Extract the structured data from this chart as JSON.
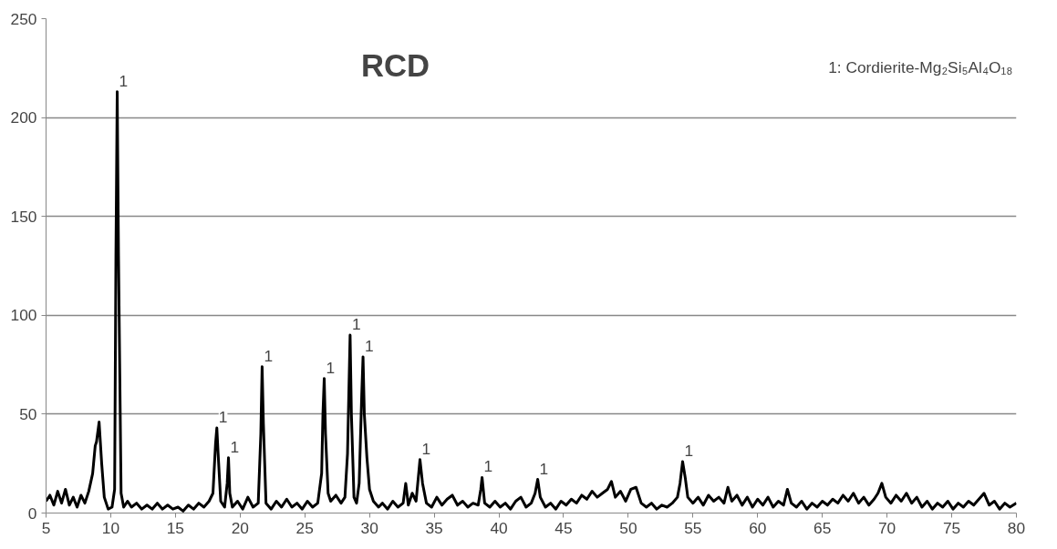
{
  "chart_data": {
    "type": "line",
    "title": "RCD",
    "x": [
      5.0,
      5.3,
      5.6,
      5.9,
      6.2,
      6.5,
      6.8,
      7.1,
      7.4,
      7.7,
      8.0,
      8.3,
      8.6,
      8.8,
      8.9,
      9.1,
      9.3,
      9.5,
      9.8,
      10.1,
      10.3,
      10.4,
      10.5,
      10.6,
      10.8,
      11.0,
      11.3,
      11.6,
      12.0,
      12.4,
      12.8,
      13.2,
      13.6,
      14.0,
      14.4,
      14.8,
      15.2,
      15.6,
      16.0,
      16.4,
      16.8,
      17.2,
      17.6,
      17.9,
      18.1,
      18.2,
      18.3,
      18.5,
      18.8,
      19.0,
      19.1,
      19.2,
      19.4,
      19.8,
      20.2,
      20.6,
      21.0,
      21.4,
      21.6,
      21.7,
      21.8,
      22.0,
      22.4,
      22.8,
      23.2,
      23.6,
      24.0,
      24.4,
      24.8,
      25.2,
      25.6,
      26.0,
      26.3,
      26.4,
      26.5,
      26.6,
      26.8,
      27.0,
      27.4,
      27.8,
      28.1,
      28.3,
      28.5,
      28.6,
      28.8,
      29.0,
      29.2,
      29.4,
      29.5,
      29.6,
      29.8,
      30.0,
      30.3,
      30.7,
      31.0,
      31.4,
      31.8,
      32.2,
      32.6,
      32.8,
      33.0,
      33.3,
      33.6,
      33.8,
      33.9,
      34.1,
      34.4,
      34.8,
      35.2,
      35.6,
      36.0,
      36.4,
      36.8,
      37.2,
      37.6,
      38.0,
      38.4,
      38.6,
      38.7,
      38.9,
      39.3,
      39.7,
      40.1,
      40.5,
      40.9,
      41.3,
      41.7,
      42.1,
      42.5,
      42.8,
      43.0,
      43.2,
      43.6,
      44.0,
      44.4,
      44.8,
      45.2,
      45.6,
      46.0,
      46.4,
      46.8,
      47.2,
      47.6,
      48.0,
      48.4,
      48.7,
      49.0,
      49.4,
      49.8,
      50.2,
      50.6,
      51.0,
      51.4,
      51.8,
      52.2,
      52.6,
      53.0,
      53.4,
      53.8,
      54.0,
      54.2,
      54.4,
      54.6,
      55.0,
      55.4,
      55.8,
      56.2,
      56.6,
      57.0,
      57.4,
      57.7,
      58.0,
      58.4,
      58.8,
      59.2,
      59.6,
      60.0,
      60.4,
      60.8,
      61.2,
      61.6,
      62.0,
      62.3,
      62.6,
      63.0,
      63.4,
      63.8,
      64.2,
      64.6,
      65.0,
      65.4,
      65.8,
      66.2,
      66.6,
      67.0,
      67.4,
      67.8,
      68.2,
      68.6,
      69.0,
      69.3,
      69.6,
      69.9,
      70.3,
      70.7,
      71.1,
      71.5,
      71.9,
      72.3,
      72.7,
      73.1,
      73.5,
      73.9,
      74.3,
      74.7,
      75.1,
      75.5,
      75.9,
      76.3,
      76.7,
      77.1,
      77.5,
      77.9,
      78.3,
      78.7,
      79.1,
      79.5,
      80.0
    ],
    "series": [
      {
        "color": "#000000",
        "values": [
          6,
          9,
          4,
          11,
          5,
          12,
          4,
          8,
          3,
          9,
          5,
          11,
          20,
          34,
          36,
          46,
          25,
          8,
          2,
          3,
          12,
          130,
          213,
          130,
          10,
          3,
          6,
          3,
          5,
          2,
          4,
          2,
          5,
          2,
          4,
          2,
          3,
          1,
          4,
          2,
          5,
          3,
          6,
          10,
          35,
          43,
          30,
          6,
          3,
          15,
          28,
          10,
          3,
          6,
          2,
          8,
          3,
          5,
          40,
          74,
          45,
          5,
          2,
          6,
          3,
          7,
          3,
          5,
          2,
          6,
          3,
          5,
          20,
          50,
          68,
          40,
          10,
          6,
          9,
          5,
          8,
          30,
          90,
          50,
          8,
          5,
          15,
          60,
          79,
          50,
          28,
          12,
          6,
          3,
          5,
          2,
          6,
          3,
          5,
          15,
          4,
          10,
          6,
          20,
          27,
          15,
          5,
          3,
          8,
          4,
          7,
          9,
          4,
          6,
          3,
          5,
          4,
          12,
          18,
          5,
          3,
          6,
          3,
          5,
          2,
          6,
          8,
          3,
          5,
          10,
          17,
          8,
          3,
          5,
          2,
          6,
          4,
          7,
          5,
          9,
          7,
          11,
          8,
          10,
          12,
          16,
          8,
          11,
          6,
          12,
          13,
          5,
          3,
          5,
          2,
          4,
          3,
          5,
          8,
          15,
          26,
          18,
          8,
          5,
          8,
          4,
          9,
          6,
          8,
          5,
          13,
          6,
          9,
          4,
          8,
          3,
          7,
          4,
          8,
          3,
          6,
          4,
          12,
          5,
          3,
          6,
          2,
          5,
          3,
          6,
          4,
          7,
          5,
          9,
          6,
          10,
          5,
          8,
          4,
          7,
          10,
          15,
          8,
          5,
          9,
          6,
          10,
          5,
          8,
          3,
          6,
          2,
          5,
          3,
          6,
          2,
          5,
          3,
          6,
          4,
          7,
          10,
          4,
          6,
          2,
          5,
          3,
          5
        ]
      }
    ],
    "xlim": [
      5,
      80
    ],
    "ylim": [
      0,
      250
    ],
    "xticks": [
      5,
      10,
      15,
      20,
      25,
      30,
      35,
      40,
      45,
      50,
      55,
      60,
      65,
      70,
      75,
      80
    ],
    "yticks": [
      0,
      50,
      100,
      150,
      200,
      250
    ],
    "grid": "y",
    "line_style": "solid",
    "annotations": [
      "1: Cordierite-Mg₂Si₅Al₄O₁₈",
      {
        "text": "1",
        "x": 10.5,
        "y": 213
      },
      {
        "text": "1",
        "x": 18.2,
        "y": 43
      },
      {
        "text": "1",
        "x": 19.1,
        "y": 28
      },
      {
        "text": "1",
        "x": 21.7,
        "y": 74
      },
      {
        "text": "1",
        "x": 26.5,
        "y": 68
      },
      {
        "text": "1",
        "x": 28.5,
        "y": 90
      },
      {
        "text": "1",
        "x": 29.5,
        "y": 79
      },
      {
        "text": "1",
        "x": 33.9,
        "y": 27
      },
      {
        "text": "1",
        "x": 38.7,
        "y": 18
      },
      {
        "text": "1",
        "x": 43.0,
        "y": 17
      },
      {
        "text": "1",
        "x": 54.2,
        "y": 26
      }
    ]
  }
}
